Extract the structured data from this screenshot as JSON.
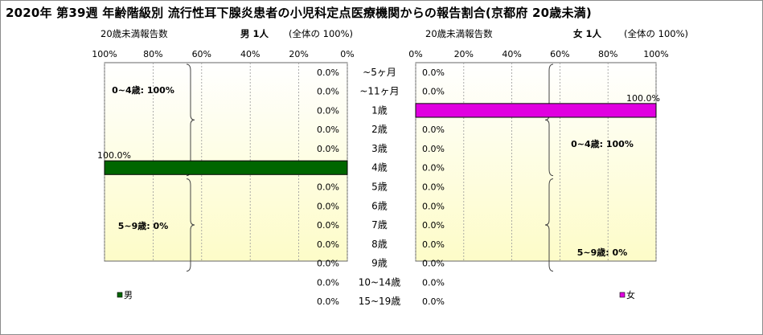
{
  "title": "2020年 第39週 年齢階級別 流行性耳下腺炎患者の小児科定点医療機関からの報告割合(京都府 20歳未満)",
  "panels": {
    "male": {
      "axis_caption": "20歳未満報告数",
      "heading": "男 1人",
      "total_note": "(全体の 100%)"
    },
    "female": {
      "axis_caption": "20歳未満報告数",
      "heading": "女 1人",
      "total_note": "(全体の 100%)"
    }
  },
  "colors": {
    "male": "#006600",
    "female": "#e000e0",
    "plot_bg_top": "#ffffff",
    "plot_bg_bottom": "#fdfcc8"
  },
  "chart_data": [
    {
      "type": "bar",
      "orientation": "horizontal",
      "direction": "right-to-left",
      "series": [
        {
          "name": "男",
          "values": [
            0,
            0,
            0,
            0,
            0,
            100,
            0,
            0,
            0,
            0,
            0,
            0,
            0
          ]
        }
      ],
      "categories": [
        "~5ヶ月",
        "~11ヶ月",
        "1歳",
        "2歳",
        "3歳",
        "4歳",
        "5歳",
        "6歳",
        "7歳",
        "8歳",
        "9歳",
        "10~14歳",
        "15~19歳"
      ],
      "data_labels": [
        "0.0%",
        "0.0%",
        "0.0%",
        "0.0%",
        "0.0%",
        "100.0%",
        "0.0%",
        "0.0%",
        "0.0%",
        "0.0%",
        "0.0%",
        "0.0%",
        "0.0%"
      ],
      "xlim": [
        0,
        100
      ],
      "x_tick_labels": [
        "100%",
        "80%",
        "60%",
        "40%",
        "20%",
        "0%"
      ],
      "group_labels": [
        {
          "text": "0~4歳: 100%",
          "from": "~5ヶ月",
          "to": "4歳"
        },
        {
          "text": "5~9歳: 0%",
          "from": "5歳",
          "to": "9歳"
        }
      ],
      "legend": "bottom-left"
    },
    {
      "type": "bar",
      "orientation": "horizontal",
      "direction": "left-to-right",
      "series": [
        {
          "name": "女",
          "values": [
            0,
            0,
            100,
            0,
            0,
            0,
            0,
            0,
            0,
            0,
            0,
            0,
            0
          ]
        }
      ],
      "categories": [
        "~5ヶ月",
        "~11ヶ月",
        "1歳",
        "2歳",
        "3歳",
        "4歳",
        "5歳",
        "6歳",
        "7歳",
        "8歳",
        "9歳",
        "10~14歳",
        "15~19歳"
      ],
      "data_labels": [
        "0.0%",
        "0.0%",
        "100.0%",
        "0.0%",
        "0.0%",
        "0.0%",
        "0.0%",
        "0.0%",
        "0.0%",
        "0.0%",
        "0.0%",
        "0.0%",
        "0.0%"
      ],
      "xlim": [
        0,
        100
      ],
      "x_tick_labels": [
        "0%",
        "20%",
        "40%",
        "60%",
        "80%",
        "100%"
      ],
      "group_labels": [
        {
          "text": "0~4歳: 100%",
          "from": "~5ヶ月",
          "to": "4歳"
        },
        {
          "text": "5~9歳: 0%",
          "from": "5歳",
          "to": "9歳"
        }
      ],
      "legend": "bottom-right"
    }
  ]
}
